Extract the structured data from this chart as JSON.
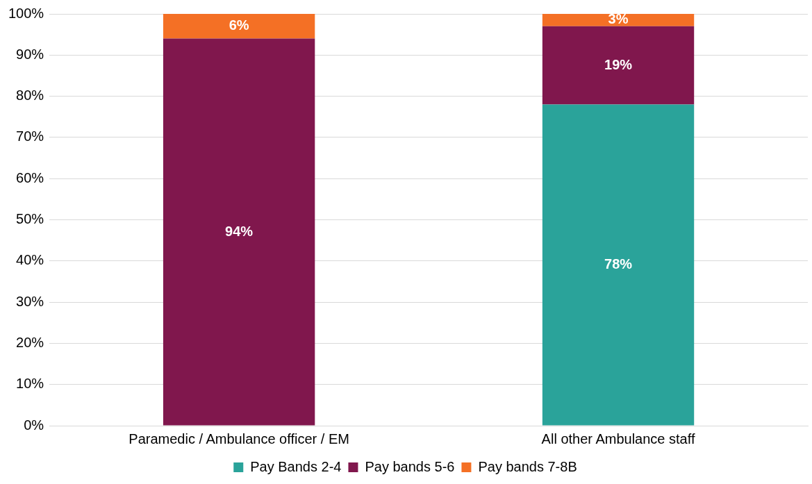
{
  "chart_data": {
    "type": "bar",
    "stacked": true,
    "categories": [
      "Paramedic / Ambulance officer / EM",
      "All other Ambulance staff"
    ],
    "series": [
      {
        "name": "Pay Bands 2-4",
        "color": "#2aa39a",
        "values": [
          0,
          78
        ],
        "value_labels": [
          null,
          "78%"
        ]
      },
      {
        "name": "Pay bands 5-6",
        "color": "#80174d",
        "values": [
          94,
          19
        ],
        "value_labels": [
          "94%",
          "19%"
        ]
      },
      {
        "name": "Pay bands 7-8B",
        "color": "#f47025",
        "values": [
          6,
          3
        ],
        "value_labels": [
          "6%",
          "3%"
        ]
      }
    ],
    "ylim": [
      0,
      100
    ],
    "yticks": [
      {
        "value": 0,
        "label": "0%"
      },
      {
        "value": 10,
        "label": "10%"
      },
      {
        "value": 20,
        "label": "20%"
      },
      {
        "value": 30,
        "label": "30%"
      },
      {
        "value": 40,
        "label": "40%"
      },
      {
        "value": 50,
        "label": "50%"
      },
      {
        "value": 60,
        "label": "60%"
      },
      {
        "value": 70,
        "label": "70%"
      },
      {
        "value": 80,
        "label": "80%"
      },
      {
        "value": 90,
        "label": "90%"
      },
      {
        "value": 100,
        "label": "100%"
      }
    ],
    "grid": "y",
    "legend": "bottom"
  }
}
